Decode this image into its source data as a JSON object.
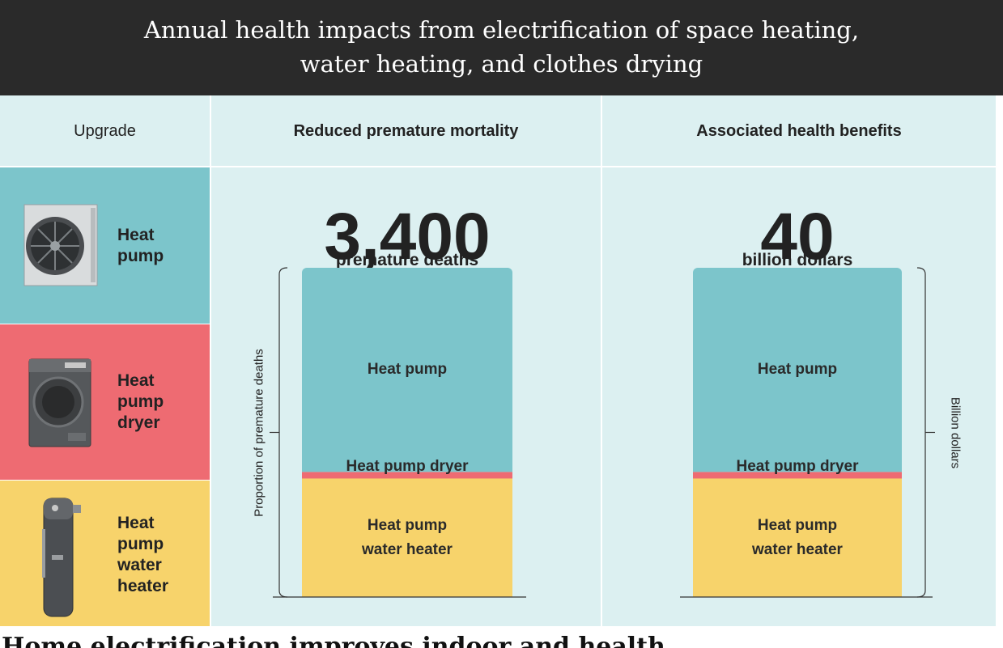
{
  "chart_data": {
    "type": "bar",
    "title": "Annual health impacts from electrification of space heating, water heating, and clothes drying",
    "title_lines": [
      "Annual health impacts from electrification of space heating,",
      "water heating, and clothes drying"
    ],
    "columns": {
      "upgrade": "Upgrade",
      "mortality": "Reduced premature mortality",
      "benefits": "Associated health benefits"
    },
    "upgrades": [
      {
        "label": "Heat pump",
        "display": "Heat\npump",
        "color": "#7cc5cb"
      },
      {
        "label": "Heat pump dryer",
        "display": "Heat\npump\ndryer",
        "color": "#ee6b72"
      },
      {
        "label": "Heat pump water heater",
        "display": "Heat\npump\nwater\nheater",
        "color": "#f7d36b"
      }
    ],
    "categories": [
      "Heat pump water heater",
      "Heat pump dryer",
      "Heat pump"
    ],
    "charts": [
      {
        "id": "mortality",
        "total": 3400,
        "total_label": "3,400",
        "unit_label": "premature deaths",
        "ylabel": "Proportion of premature deaths",
        "series": [
          {
            "name": "Heat pump water heater",
            "label": "Heat pump\nwater heater",
            "value": 0.36
          },
          {
            "name": "Heat pump dryer",
            "label": "Heat pump dryer",
            "value": 0.02
          },
          {
            "name": "Heat pump",
            "label": "Heat pump",
            "value": 0.62
          }
        ]
      },
      {
        "id": "benefits",
        "total": 40,
        "total_label": "40",
        "unit_label": "billion dollars",
        "ylabel": "Billion dollars",
        "series": [
          {
            "name": "Heat pump water heater",
            "label": "Heat pump\nwater heater",
            "value": 0.36
          },
          {
            "name": "Heat pump dryer",
            "label": "Heat pump dryer",
            "value": 0.02
          },
          {
            "name": "Heat pump",
            "label": "Heat pump",
            "value": 0.62
          }
        ]
      }
    ]
  },
  "footer_text": "Home electrification improves indoor and health"
}
